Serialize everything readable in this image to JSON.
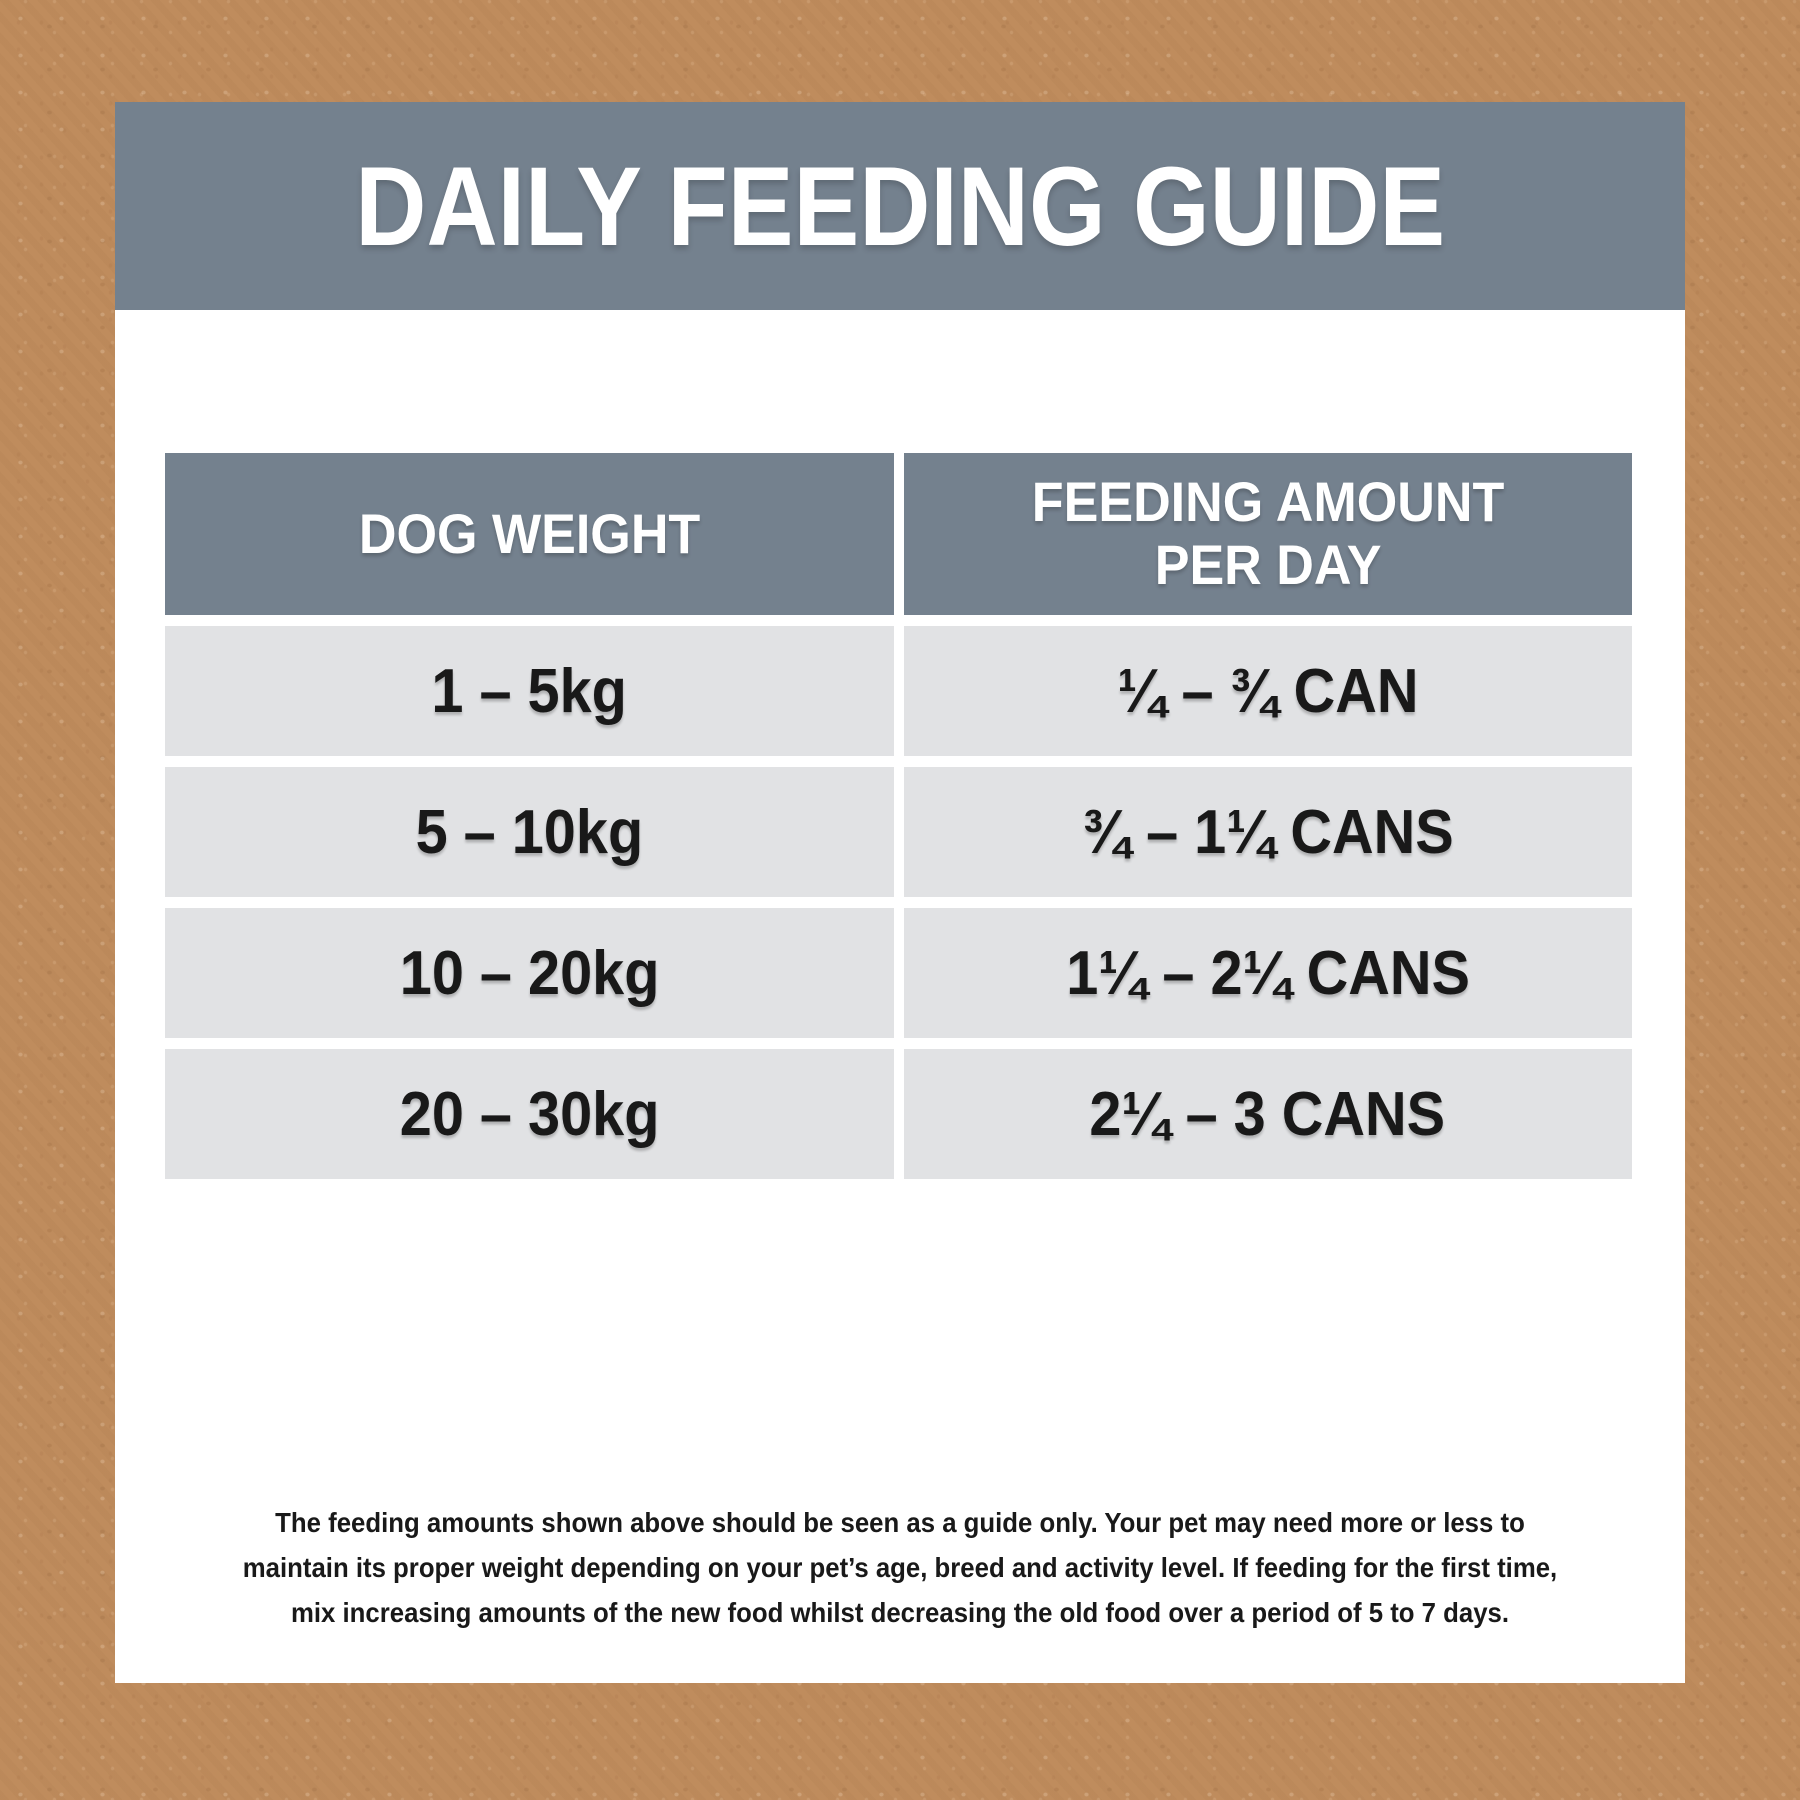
{
  "title": "DAILY FEEDING GUIDE",
  "table": {
    "columns": {
      "weight": "DOG WEIGHT",
      "amount": "FEEDING AMOUNT\nPER DAY"
    },
    "rows": [
      {
        "weight": "1 – 5kg",
        "amount": "¼ – ¾ CAN"
      },
      {
        "weight": "5 – 10kg",
        "amount": "¾ – 1¼ CANS"
      },
      {
        "weight": "10 – 20kg",
        "amount": "1¼ – 2¼ CANS"
      },
      {
        "weight": "20 – 30kg",
        "amount": "2¼ – 3 CANS"
      }
    ]
  },
  "footnote_lines": [
    "The feeding amounts shown above should be seen as a guide only. Your pet may need more or less to",
    "maintain its proper weight depending on your pet’s age, breed and activity level. If feeding for the first time,",
    "mix increasing amounts of the new food whilst decreasing the old food over a period of 5 to 7 days."
  ],
  "colors": {
    "background_tan": "#bf8c5d",
    "panel_white": "#ffffff",
    "header_slate": "#74818e",
    "row_gray": "#e1e2e4",
    "text_black": "#191919",
    "text_white": "#ffffff"
  }
}
